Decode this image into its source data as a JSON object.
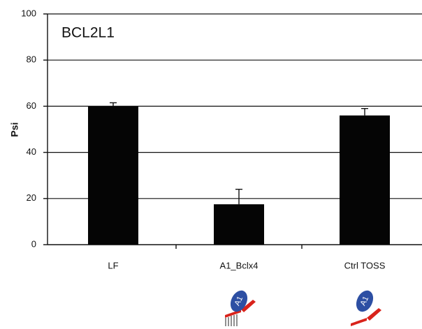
{
  "chart_data": {
    "type": "bar",
    "title": "BCL2L1",
    "y_label": "Psi",
    "categories": [
      "LF",
      "A1_Bclx4",
      "Ctrl TOSS"
    ],
    "values": [
      60,
      17.5,
      56
    ],
    "errors": [
      1.5,
      6.5,
      3
    ],
    "color": "#050505",
    "ylim": [
      0,
      100
    ],
    "yticks": [
      0,
      20,
      40,
      60,
      80,
      100
    ],
    "grid": true,
    "annotations": [
      "A1",
      "A1"
    ]
  }
}
